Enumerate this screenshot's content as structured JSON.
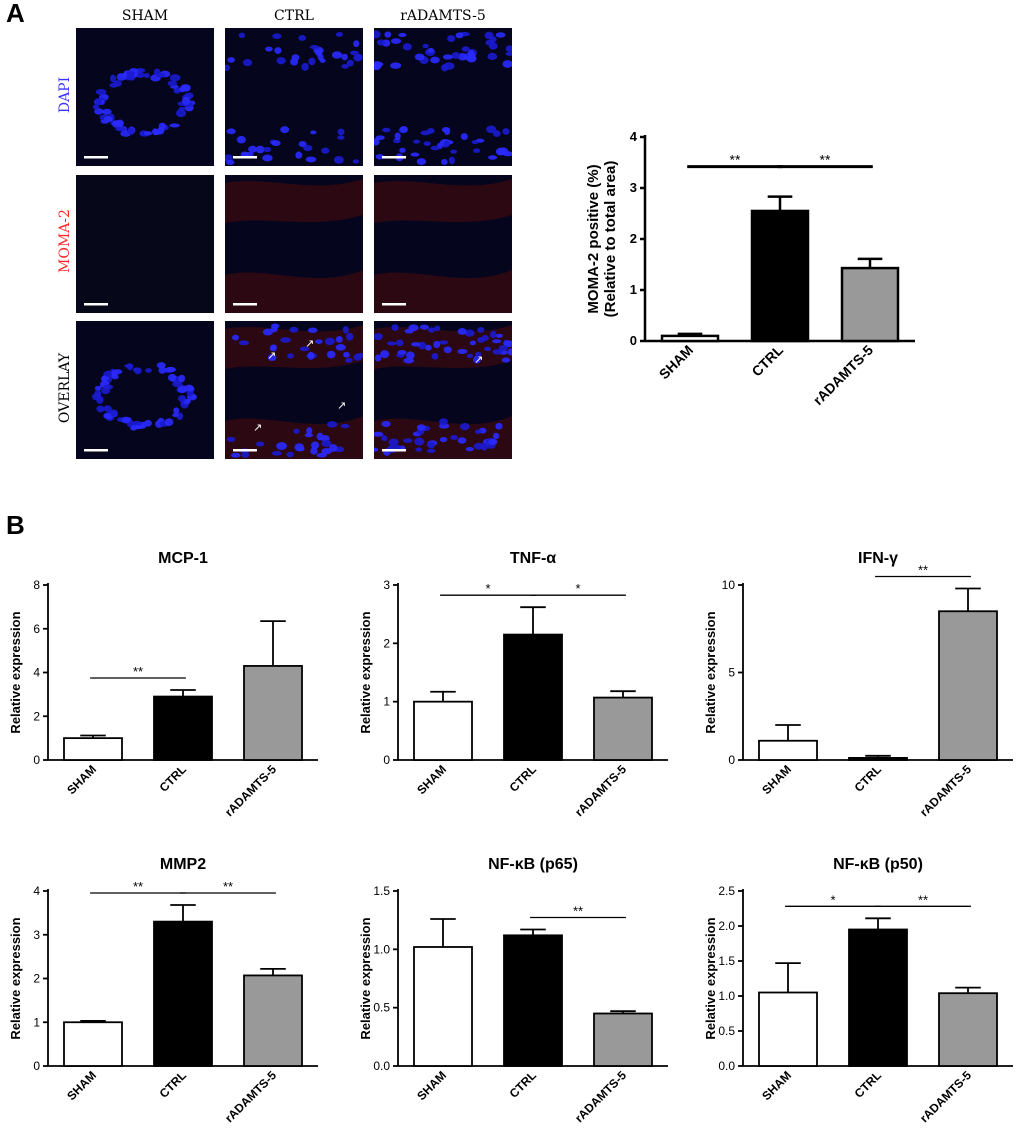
{
  "panel_a": {
    "letter": "A",
    "columns": [
      "SHAM",
      "CTRL",
      "rADAMTS-5"
    ],
    "rows": [
      {
        "label": "DAPI",
        "color": "#3a33ff"
      },
      {
        "label": "MOMA-2",
        "color": "#ff2a2a"
      },
      {
        "label": "OVERLAY",
        "color": "#000000"
      }
    ]
  },
  "panel_b": {
    "letter": "B"
  },
  "colors": {
    "sham": "#ffffff",
    "ctrl": "#000000",
    "radamts": "#999999",
    "dapi": "#2222ff",
    "moma": "#a01818"
  },
  "chart_data": [
    {
      "type": "bar",
      "title": "",
      "ylabel": "MOMA-2 positive (%)\n(Relative to total area)",
      "categories": [
        "SHAM",
        "CTRL",
        "rADAMTS-5"
      ],
      "values": [
        0.1,
        2.55,
        1.43
      ],
      "errors": [
        0.04,
        0.28,
        0.18
      ],
      "ylim": [
        0,
        4
      ],
      "yticks": [
        0,
        1,
        2,
        3,
        4
      ],
      "significance": [
        {
          "from": 0,
          "to": 1,
          "label": "**"
        },
        {
          "from": 1,
          "to": 2,
          "label": "**"
        }
      ]
    },
    {
      "type": "bar",
      "title": "MCP-1",
      "ylabel": "Relative expression",
      "categories": [
        "SHAM",
        "CTRL",
        "rADAMTS-5"
      ],
      "values": [
        1.0,
        2.9,
        4.3
      ],
      "errors": [
        0.12,
        0.3,
        2.05
      ],
      "ylim": [
        0,
        8
      ],
      "yticks": [
        0,
        2,
        4,
        6,
        8
      ],
      "significance": [
        {
          "from": 0,
          "to": 1,
          "label": "**"
        }
      ]
    },
    {
      "type": "bar",
      "title": "TNF-α",
      "ylabel": "Relative expression",
      "categories": [
        "SHAM",
        "CTRL",
        "rADAMTS-5"
      ],
      "values": [
        1.0,
        2.15,
        1.07
      ],
      "errors": [
        0.17,
        0.47,
        0.11
      ],
      "ylim": [
        0,
        3
      ],
      "yticks": [
        0,
        1,
        2,
        3
      ],
      "significance": [
        {
          "from": 0,
          "to": 1,
          "label": "*"
        },
        {
          "from": 1,
          "to": 2,
          "label": "*"
        }
      ]
    },
    {
      "type": "bar",
      "title": "IFN-γ",
      "ylabel": "Relative expression",
      "categories": [
        "SHAM",
        "CTRL",
        "rADAMTS-5"
      ],
      "values": [
        1.1,
        0.12,
        8.5
      ],
      "errors": [
        0.9,
        0.12,
        1.3
      ],
      "ylim": [
        0,
        10
      ],
      "yticks": [
        0,
        5,
        10
      ],
      "significance": [
        {
          "from": 1,
          "to": 2,
          "label": "**"
        }
      ]
    },
    {
      "type": "bar",
      "title": "MMP2",
      "ylabel": "Relative expression",
      "categories": [
        "SHAM",
        "CTRL",
        "rADAMTS-5"
      ],
      "values": [
        1.0,
        3.3,
        2.07
      ],
      "errors": [
        0.03,
        0.38,
        0.15
      ],
      "ylim": [
        0,
        4
      ],
      "yticks": [
        0,
        1,
        2,
        3,
        4
      ],
      "significance": [
        {
          "from": 0,
          "to": 1,
          "label": "**"
        },
        {
          "from": 1,
          "to": 2,
          "label": "**"
        }
      ]
    },
    {
      "type": "bar",
      "title": "NF-κB (p65)",
      "ylabel": "Relative expression",
      "categories": [
        "SHAM",
        "CTRL",
        "rADAMTS-5"
      ],
      "values": [
        1.02,
        1.12,
        0.45
      ],
      "errors": [
        0.24,
        0.05,
        0.02
      ],
      "ylim": [
        0,
        1.5
      ],
      "yticks": [
        "0.0",
        "0.5",
        "1.0",
        "1.5"
      ],
      "significance": [
        {
          "from": 1,
          "to": 2,
          "label": "**"
        }
      ]
    },
    {
      "type": "bar",
      "title": "NF-κB (p50)",
      "ylabel": "Relative expression",
      "categories": [
        "SHAM",
        "CTRL",
        "rADAMTS-5"
      ],
      "values": [
        1.05,
        1.95,
        1.04
      ],
      "errors": [
        0.42,
        0.16,
        0.08
      ],
      "ylim": [
        0,
        2.5
      ],
      "yticks": [
        "0.0",
        "0.5",
        "1.0",
        "1.5",
        "2.0",
        "2.5"
      ],
      "significance": [
        {
          "from": 0,
          "to": 1,
          "label": "*"
        },
        {
          "from": 1,
          "to": 2,
          "label": "**"
        }
      ]
    }
  ]
}
